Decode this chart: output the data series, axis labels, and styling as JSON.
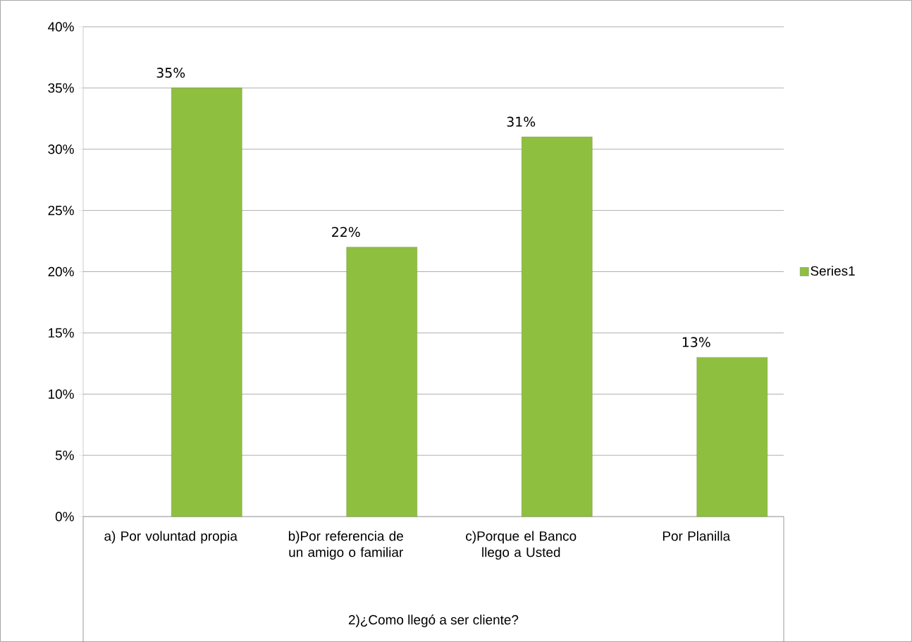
{
  "chart_data": {
    "type": "bar",
    "xlabel": "2)¿Como llegó a ser cliente?",
    "categories": [
      "a) Por voluntad propia",
      "b)Por referencia de un amigo o familiar",
      "c)Porque el Banco llego a Usted",
      "Por Planilla"
    ],
    "series": [
      {
        "name": "Series1",
        "color": "#8fbf3f",
        "values": [
          35,
          22,
          31,
          13
        ],
        "value_labels": [
          "35%",
          "22%",
          "31%",
          "13%"
        ]
      }
    ],
    "ylim": [
      0,
      40
    ],
    "yticks": [
      {
        "value": 0,
        "label": "0%"
      },
      {
        "value": 5,
        "label": "5%"
      },
      {
        "value": 10,
        "label": "10%"
      },
      {
        "value": 15,
        "label": "15%"
      },
      {
        "value": 20,
        "label": "20%"
      },
      {
        "value": 25,
        "label": "25%"
      },
      {
        "value": 30,
        "label": "30%"
      },
      {
        "value": 35,
        "label": "35%"
      },
      {
        "value": 40,
        "label": "40%"
      }
    ],
    "grid": "y",
    "legend": "right"
  }
}
